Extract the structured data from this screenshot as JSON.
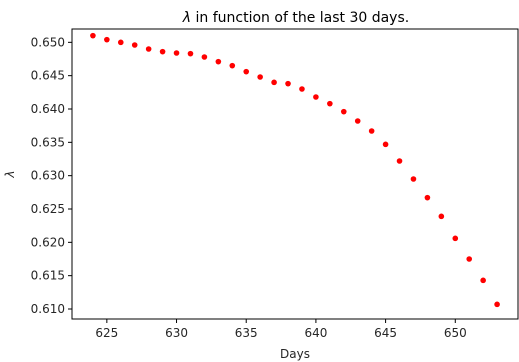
{
  "chart_data": {
    "type": "scatter",
    "title_symbol": "λ",
    "title_rest": " in function of the last 30 days.",
    "xlabel": "Days",
    "ylabel": "λ",
    "xlim": [
      622.5,
      654.5
    ],
    "ylim": [
      0.6085,
      0.652
    ],
    "xticks": [
      625,
      630,
      635,
      640,
      645,
      650
    ],
    "yticks": [
      0.61,
      0.615,
      0.62,
      0.625,
      0.63,
      0.635,
      0.64,
      0.645,
      0.65
    ],
    "ytick_labels": [
      "0.610",
      "0.615",
      "0.620",
      "0.625",
      "0.630",
      "0.635",
      "0.640",
      "0.645",
      "0.650"
    ],
    "grid": false,
    "marker_color": "#ff0000",
    "x": [
      624,
      625,
      626,
      627,
      628,
      629,
      630,
      631,
      632,
      633,
      634,
      635,
      636,
      637,
      638,
      639,
      640,
      641,
      642,
      643,
      644,
      645,
      646,
      647,
      648,
      649,
      650,
      651,
      652,
      653
    ],
    "y": [
      0.651,
      0.6504,
      0.65,
      0.6496,
      0.649,
      0.6486,
      0.6484,
      0.6483,
      0.6478,
      0.6471,
      0.6465,
      0.6456,
      0.6448,
      0.644,
      0.6438,
      0.643,
      0.6418,
      0.6408,
      0.6396,
      0.6382,
      0.6367,
      0.6347,
      0.6322,
      0.6295,
      0.6267,
      0.6239,
      0.6206,
      0.6175,
      0.6143,
      0.6107
    ]
  }
}
